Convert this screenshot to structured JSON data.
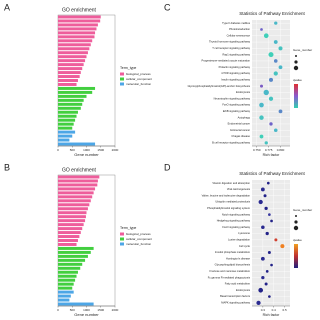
{
  "chart_data": [
    {
      "type": "bar",
      "panel": "A",
      "title": "GO enrichment",
      "xlabel": "Gene number",
      "legend_title": "Term_type",
      "categories": [
        null,
        null,
        null,
        null,
        null,
        null,
        null,
        null,
        null,
        null,
        null,
        null,
        null,
        null,
        null,
        null,
        null,
        null,
        null,
        null,
        null,
        null,
        null,
        null,
        null,
        null,
        null,
        null,
        null,
        null,
        null,
        null,
        null
      ],
      "series": [
        {
          "name": "biological_process",
          "color": "#ee5d9b",
          "values": [
            1500,
            1480,
            1400,
            1350,
            1300,
            1280,
            1200,
            1150,
            1100,
            1050,
            1000,
            950,
            900,
            850,
            800,
            760,
            700,
            650,
            null,
            null,
            null,
            null,
            null,
            null,
            null,
            null,
            null,
            null,
            null,
            null,
            null,
            null,
            null
          ]
        },
        {
          "name": "cellular_component",
          "color": "#42cf3f",
          "values": [
            null,
            null,
            null,
            null,
            null,
            null,
            null,
            null,
            null,
            null,
            null,
            null,
            null,
            null,
            null,
            null,
            null,
            null,
            1300,
            1200,
            1000,
            900,
            850,
            800,
            700,
            650,
            600,
            550,
            500,
            null,
            null,
            null,
            null
          ]
        },
        {
          "name": "molecular_function",
          "color": "#4da6e6",
          "values": [
            null,
            null,
            null,
            null,
            null,
            null,
            null,
            null,
            null,
            null,
            null,
            null,
            null,
            null,
            null,
            null,
            null,
            null,
            null,
            null,
            null,
            null,
            null,
            null,
            null,
            null,
            null,
            null,
            null,
            600,
            500,
            400,
            1300
          ]
        }
      ],
      "xlim": [
        0,
        2000
      ],
      "xticks": [
        0,
        500,
        1000,
        1500,
        2000
      ]
    },
    {
      "type": "scatter",
      "panel": "C",
      "title": "Statistics of Pathway Enrichment",
      "xlabel": "Rich factor",
      "legend_titles": [
        "Gene_number",
        "qvalue"
      ],
      "categories": [
        "Type II diabetes mellitus",
        "Phototransduction",
        "Cellular senescence",
        "Thyroid hormone signaling pathway",
        "T cell receptor signaling pathway",
        "Rap1 signaling pathway",
        "Progesterone-mediated oocyte maturation",
        "Prolactin signaling pathway",
        "mTOR signaling pathway",
        "Insulin signaling pathway",
        "Glycosylphosphatidylinositol(GPI)-anchor biosynthesis",
        "Endocytosis",
        "Neurotrophin signaling pathway",
        "FoxO signaling pathway",
        "ErbB signaling pathway",
        "Autophagy",
        "Endometrial cancer",
        "Colorectal cancer",
        "Chagas disease",
        "B cell receptor signaling pathway"
      ],
      "x": [
        0.79,
        0.76,
        0.77,
        0.79,
        0.8,
        0.78,
        0.79,
        0.8,
        0.79,
        0.78,
        0.76,
        0.77,
        0.78,
        0.76,
        0.8,
        0.76,
        0.78,
        0.79,
        0.76,
        0.77
      ],
      "sizes": [
        30,
        20,
        60,
        40,
        45,
        70,
        35,
        40,
        50,
        45,
        25,
        80,
        50,
        60,
        40,
        55,
        30,
        35,
        40,
        30
      ],
      "colors": [
        "#4ab8c8",
        "#6e62c9",
        "#3fcfb8",
        "#4ab8c8",
        "#46c3c0",
        "#3fcfb8",
        "#5a88c8",
        "#4ab8c8",
        "#46c3c0",
        "#5a88c8",
        "#7a5ac4",
        "#4ab8c8",
        "#46c3c0",
        "#4ab8c8",
        "#5a88c8",
        "#46c3c0",
        "#6e62c9",
        "#4ab8c8",
        "#3fcfb8",
        "#46c3c0"
      ],
      "xlim": [
        0.74,
        0.82
      ],
      "xticks": [
        {
          "value": 0.75,
          "label": "0.750"
        },
        {
          "value": 0.775,
          "label": "0.775"
        },
        {
          "value": 0.8,
          "label": "0.800"
        }
      ]
    },
    {
      "type": "bar",
      "panel": "B",
      "title": "GO enrichment",
      "xlabel": "Gene number",
      "legend_title": "Term_type",
      "categories": [
        null,
        null,
        null,
        null,
        null,
        null,
        null,
        null,
        null,
        null,
        null,
        null,
        null,
        null,
        null,
        null,
        null,
        null,
        null,
        null,
        null,
        null,
        null,
        null,
        null,
        null,
        null,
        null,
        null,
        null,
        null,
        null,
        null
      ],
      "series": [
        {
          "name": "biological_process",
          "color": "#ee5d9b",
          "values": [
            1450,
            1400,
            1380,
            1300,
            1250,
            1200,
            1150,
            1100,
            1050,
            1000,
            980,
            950,
            900,
            850,
            800,
            750,
            700,
            650,
            null,
            null,
            null,
            null,
            null,
            null,
            null,
            null,
            null,
            null,
            null,
            null,
            null,
            null,
            null
          ]
        },
        {
          "name": "cellular_component",
          "color": "#42cf3f",
          "values": [
            null,
            null,
            null,
            null,
            null,
            null,
            null,
            null,
            null,
            null,
            null,
            null,
            null,
            null,
            null,
            null,
            null,
            null,
            1250,
            1150,
            1050,
            950,
            850,
            780,
            700,
            650,
            600,
            550,
            500,
            null,
            null,
            null,
            null
          ]
        },
        {
          "name": "molecular_function",
          "color": "#4da6e6",
          "values": [
            null,
            null,
            null,
            null,
            null,
            null,
            null,
            null,
            null,
            null,
            null,
            null,
            null,
            null,
            null,
            null,
            null,
            null,
            null,
            null,
            null,
            null,
            null,
            null,
            null,
            null,
            null,
            null,
            null,
            550,
            450,
            400,
            1250
          ]
        }
      ],
      "xlim": [
        0,
        2000
      ],
      "xticks": [
        0,
        500,
        1000,
        1500,
        2000
      ]
    },
    {
      "type": "scatter",
      "panel": "D",
      "title": "Statistics of Pathway Enrichment",
      "xlabel": "Rich factor",
      "legend_titles": [
        "Gene_number",
        "qvalue"
      ],
      "categories": [
        "Vitamin digestion and absorption",
        "Viral carcinogenesis",
        "Valine, leucine and isoleucine degradation",
        "Ubiquitin mediated proteolysis",
        "Phosphatidylinositol signaling system",
        "Notch signaling pathway",
        "Hedgehog signaling pathway",
        "FoxO signaling pathway",
        "Lysosome",
        "Lysine degradation",
        "Cell cycle",
        "Inositol phosphate metabolism",
        "Huntington's disease",
        "Glycosphingolipid biosynthesis",
        "Fructose and mannose metabolism",
        "Fc gamma R-mediated phagocytosis",
        "Fatty acid metabolism",
        "Endocytosis",
        "Basal transcription factors",
        "MAPK signaling pathway"
      ],
      "x": [
        0.35,
        0.3,
        0.32,
        0.28,
        0.33,
        0.36,
        0.38,
        0.3,
        0.34,
        0.42,
        0.48,
        0.36,
        0.3,
        0.38,
        0.34,
        0.3,
        0.33,
        0.28,
        0.36,
        0.26
      ],
      "sizes": [
        20,
        40,
        25,
        50,
        30,
        20,
        20,
        35,
        30,
        25,
        45,
        25,
        40,
        20,
        20,
        30,
        25,
        60,
        20,
        50
      ],
      "colors": [
        "#222288",
        "#2a2a90",
        "#222288",
        "#2a2a90",
        "#222288",
        "#3a3aa0",
        "#222288",
        "#2a2a90",
        "#222288",
        "#d04030",
        "#f08020",
        "#222288",
        "#2a2a90",
        "#222288",
        "#222288",
        "#2a2a90",
        "#222288",
        "#222288",
        "#222288",
        "#2a2a90"
      ],
      "xlim": [
        0.2,
        0.55
      ],
      "xticks": [
        0.3,
        0.4,
        0.5
      ]
    }
  ]
}
